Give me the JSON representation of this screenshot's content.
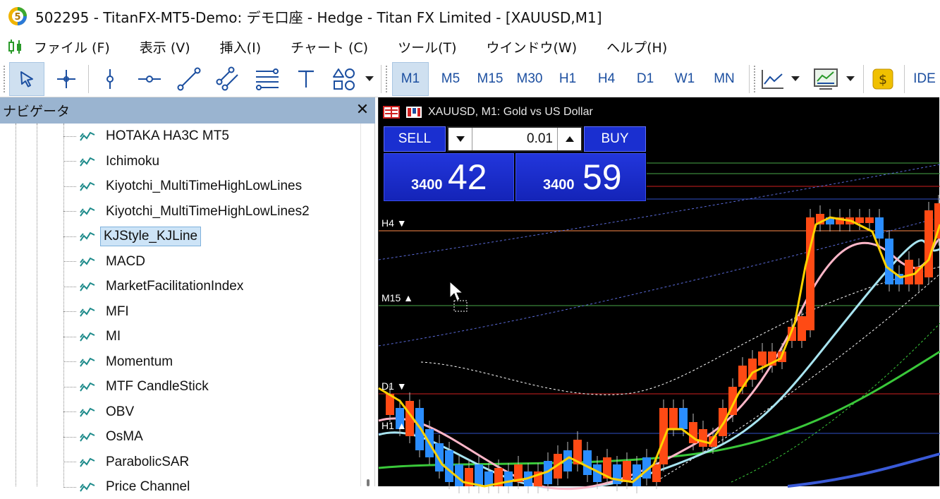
{
  "window": {
    "title": "502295 - TitanFX-MT5-Demo: デモ口座 - Hedge - Titan FX Limited - [XAUUSD,M1]"
  },
  "menu": {
    "items": [
      "ファイル (F)",
      "表示 (V)",
      "挿入(I)",
      "チャート (C)",
      "ツール(T)",
      "ウインドウ(W)",
      "ヘルプ(H)"
    ]
  },
  "toolbar": {
    "tools": [
      "cursor-tool",
      "crosshair-tool",
      "vertical-line-tool",
      "horizontal-line-tool",
      "trendline-tool",
      "channel-tool",
      "fibonacci-tool",
      "text-tool",
      "shapes-tool"
    ],
    "timeframes": [
      "M1",
      "M5",
      "M15",
      "M30",
      "H1",
      "H4",
      "D1",
      "W1",
      "MN"
    ],
    "active_timeframe": "M1",
    "ide_label": "IDE"
  },
  "navigator": {
    "title": "ナビゲータ",
    "close_label": "✕",
    "items": [
      {
        "label": "HOTAKA   HA3C MT5",
        "selected": false
      },
      {
        "label": "Ichimoku",
        "selected": false
      },
      {
        "label": "Kiyotchi_MultiTimeHighLowLines",
        "selected": false
      },
      {
        "label": "Kiyotchi_MultiTimeHighLowLines2",
        "selected": false
      },
      {
        "label": "KJStyle_KJLine",
        "selected": true
      },
      {
        "label": "MACD",
        "selected": false
      },
      {
        "label": "MarketFacilitationIndex",
        "selected": false
      },
      {
        "label": "MFI",
        "selected": false
      },
      {
        "label": "MI",
        "selected": false
      },
      {
        "label": "Momentum",
        "selected": false
      },
      {
        "label": "MTF CandleStick",
        "selected": false
      },
      {
        "label": "OBV",
        "selected": false
      },
      {
        "label": "OsMA",
        "selected": false
      },
      {
        "label": "ParabolicSAR",
        "selected": false
      },
      {
        "label": "Price Channel",
        "selected": false
      }
    ]
  },
  "chart": {
    "symbol_caption": "XAUUSD, M1:  Gold vs US Dollar",
    "trade": {
      "sell_label": "SELL",
      "buy_label": "BUY",
      "lot": "0.01",
      "bid_prefix": "3400",
      "bid_big": "42",
      "ask_prefix": "3400",
      "ask_big": "59"
    },
    "level_labels": [
      {
        "text": "H4 ▼"
      },
      {
        "text": "M15 ▲"
      },
      {
        "text": "D1 ▼"
      },
      {
        "text": "H1 ▲"
      }
    ],
    "colors": {
      "bull": "#ff4a14",
      "bear": "#2a8dff",
      "ma_yellow": "#ffd200",
      "ma_pink": "#ffb6c8",
      "ma_lightblue": "#a8e4f0",
      "ma_green": "#3ac83a",
      "ma_blue": "#3a5ad8",
      "level_orange": "#ff8a4a",
      "level_green": "#49a849",
      "level_red": "#d02020",
      "level_blue": "#3050c8"
    }
  }
}
